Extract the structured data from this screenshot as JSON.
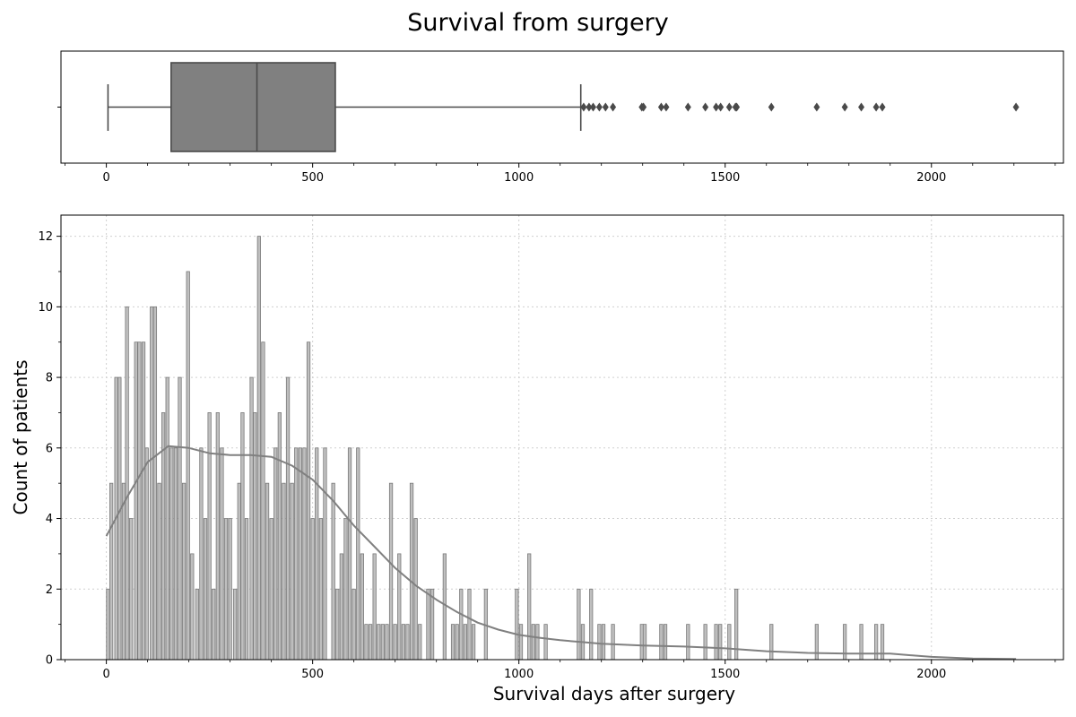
{
  "title": "Survival from surgery",
  "chart_data": [
    {
      "type": "box",
      "name": "survival-boxplot",
      "xlim": [
        -110,
        2320
      ],
      "xticks": [
        0,
        500,
        1000,
        1500,
        2000
      ],
      "xtick_labels": [
        "0",
        "500",
        "1000",
        "1500",
        "2000"
      ],
      "whisker_low": 4,
      "q1": 157,
      "median": 365,
      "q3": 555,
      "whisker_high": 1150,
      "outliers": [
        1157,
        1170,
        1180,
        1195,
        1210,
        1228,
        1298,
        1302,
        1345,
        1357,
        1410,
        1452,
        1478,
        1489,
        1510,
        1525,
        1528,
        1612,
        1722,
        1790,
        1830,
        1866,
        1881,
        2205
      ],
      "fill_color": "#808080",
      "line_color": "#4a4a4a"
    },
    {
      "type": "bar",
      "name": "survival-histogram",
      "xlabel": "Survival days after surgery",
      "ylabel": "Count of patients",
      "xlim": [
        -110,
        2320
      ],
      "ylim": [
        0,
        12.6
      ],
      "xticks": [
        0,
        500,
        1000,
        1500,
        2000
      ],
      "xtick_labels": [
        "0",
        "500",
        "1000",
        "1500",
        "2000"
      ],
      "yticks": [
        0,
        2,
        4,
        6,
        8,
        10,
        12
      ],
      "ytick_labels": [
        "0",
        "2",
        "4",
        "6",
        "8",
        "10",
        "12"
      ],
      "grid": true,
      "bin_width": 7.5,
      "bars": [
        {
          "x": 4,
          "count": 2
        },
        {
          "x": 12,
          "count": 5
        },
        {
          "x": 24,
          "count": 8
        },
        {
          "x": 32,
          "count": 8
        },
        {
          "x": 42,
          "count": 5
        },
        {
          "x": 50,
          "count": 10
        },
        {
          "x": 60,
          "count": 4
        },
        {
          "x": 72,
          "count": 9
        },
        {
          "x": 80,
          "count": 9
        },
        {
          "x": 90,
          "count": 9
        },
        {
          "x": 98,
          "count": 6
        },
        {
          "x": 110,
          "count": 10
        },
        {
          "x": 118,
          "count": 10
        },
        {
          "x": 128,
          "count": 5
        },
        {
          "x": 138,
          "count": 7
        },
        {
          "x": 148,
          "count": 8
        },
        {
          "x": 158,
          "count": 6
        },
        {
          "x": 168,
          "count": 6
        },
        {
          "x": 178,
          "count": 8
        },
        {
          "x": 188,
          "count": 5
        },
        {
          "x": 198,
          "count": 11
        },
        {
          "x": 208,
          "count": 3
        },
        {
          "x": 220,
          "count": 2
        },
        {
          "x": 230,
          "count": 6
        },
        {
          "x": 240,
          "count": 4
        },
        {
          "x": 250,
          "count": 7
        },
        {
          "x": 260,
          "count": 2
        },
        {
          "x": 270,
          "count": 7
        },
        {
          "x": 280,
          "count": 6
        },
        {
          "x": 290,
          "count": 4
        },
        {
          "x": 300,
          "count": 4
        },
        {
          "x": 312,
          "count": 2
        },
        {
          "x": 322,
          "count": 5
        },
        {
          "x": 330,
          "count": 7
        },
        {
          "x": 340,
          "count": 4
        },
        {
          "x": 352,
          "count": 8
        },
        {
          "x": 360,
          "count": 7
        },
        {
          "x": 370,
          "count": 12
        },
        {
          "x": 380,
          "count": 9
        },
        {
          "x": 390,
          "count": 5
        },
        {
          "x": 400,
          "count": 4
        },
        {
          "x": 410,
          "count": 6
        },
        {
          "x": 420,
          "count": 7
        },
        {
          "x": 430,
          "count": 5
        },
        {
          "x": 440,
          "count": 8
        },
        {
          "x": 450,
          "count": 5
        },
        {
          "x": 460,
          "count": 6
        },
        {
          "x": 470,
          "count": 6
        },
        {
          "x": 480,
          "count": 6
        },
        {
          "x": 490,
          "count": 9
        },
        {
          "x": 500,
          "count": 4
        },
        {
          "x": 510,
          "count": 6
        },
        {
          "x": 520,
          "count": 4
        },
        {
          "x": 530,
          "count": 6
        },
        {
          "x": 550,
          "count": 5
        },
        {
          "x": 560,
          "count": 2
        },
        {
          "x": 570,
          "count": 3
        },
        {
          "x": 580,
          "count": 4
        },
        {
          "x": 590,
          "count": 6
        },
        {
          "x": 600,
          "count": 2
        },
        {
          "x": 610,
          "count": 6
        },
        {
          "x": 620,
          "count": 3
        },
        {
          "x": 630,
          "count": 1
        },
        {
          "x": 640,
          "count": 1
        },
        {
          "x": 650,
          "count": 3
        },
        {
          "x": 660,
          "count": 1
        },
        {
          "x": 670,
          "count": 1
        },
        {
          "x": 680,
          "count": 1
        },
        {
          "x": 690,
          "count": 5
        },
        {
          "x": 700,
          "count": 1
        },
        {
          "x": 710,
          "count": 3
        },
        {
          "x": 720,
          "count": 1
        },
        {
          "x": 730,
          "count": 1
        },
        {
          "x": 740,
          "count": 5
        },
        {
          "x": 750,
          "count": 4
        },
        {
          "x": 760,
          "count": 1
        },
        {
          "x": 780,
          "count": 2
        },
        {
          "x": 790,
          "count": 2
        },
        {
          "x": 820,
          "count": 3
        },
        {
          "x": 840,
          "count": 1
        },
        {
          "x": 850,
          "count": 1
        },
        {
          "x": 860,
          "count": 2
        },
        {
          "x": 870,
          "count": 1
        },
        {
          "x": 880,
          "count": 2
        },
        {
          "x": 890,
          "count": 1
        },
        {
          "x": 920,
          "count": 2
        },
        {
          "x": 995,
          "count": 2
        },
        {
          "x": 1005,
          "count": 1
        },
        {
          "x": 1025,
          "count": 3
        },
        {
          "x": 1035,
          "count": 1
        },
        {
          "x": 1045,
          "count": 1
        },
        {
          "x": 1065,
          "count": 1
        },
        {
          "x": 1145,
          "count": 2
        },
        {
          "x": 1155,
          "count": 1
        },
        {
          "x": 1175,
          "count": 2
        },
        {
          "x": 1195,
          "count": 1
        },
        {
          "x": 1205,
          "count": 1
        },
        {
          "x": 1228,
          "count": 1
        },
        {
          "x": 1298,
          "count": 1
        },
        {
          "x": 1305,
          "count": 1
        },
        {
          "x": 1345,
          "count": 1
        },
        {
          "x": 1355,
          "count": 1
        },
        {
          "x": 1410,
          "count": 1
        },
        {
          "x": 1452,
          "count": 1
        },
        {
          "x": 1478,
          "count": 1
        },
        {
          "x": 1488,
          "count": 1
        },
        {
          "x": 1510,
          "count": 1
        },
        {
          "x": 1527,
          "count": 2
        },
        {
          "x": 1612,
          "count": 1
        },
        {
          "x": 1722,
          "count": 1
        },
        {
          "x": 1790,
          "count": 1
        },
        {
          "x": 1830,
          "count": 1
        },
        {
          "x": 1866,
          "count": 1
        },
        {
          "x": 1881,
          "count": 1
        }
      ],
      "bar_color": "#bfbfbf",
      "bar_edge_color": "#7a7a7a",
      "kde": {
        "x": [
          0,
          50,
          100,
          150,
          200,
          250,
          300,
          350,
          400,
          450,
          500,
          550,
          600,
          650,
          700,
          750,
          800,
          850,
          900,
          950,
          1000,
          1050,
          1100,
          1150,
          1200,
          1300,
          1400,
          1500,
          1600,
          1700,
          1800,
          1900,
          2000,
          2100,
          2205
        ],
        "y": [
          3.5,
          4.6,
          5.6,
          6.05,
          6.0,
          5.85,
          5.8,
          5.8,
          5.75,
          5.5,
          5.1,
          4.5,
          3.8,
          3.2,
          2.6,
          2.1,
          1.7,
          1.35,
          1.05,
          0.85,
          0.7,
          0.62,
          0.55,
          0.5,
          0.45,
          0.4,
          0.37,
          0.32,
          0.24,
          0.19,
          0.17,
          0.17,
          0.08,
          0.03,
          0.02
        ]
      },
      "kde_color": "#808080"
    }
  ]
}
